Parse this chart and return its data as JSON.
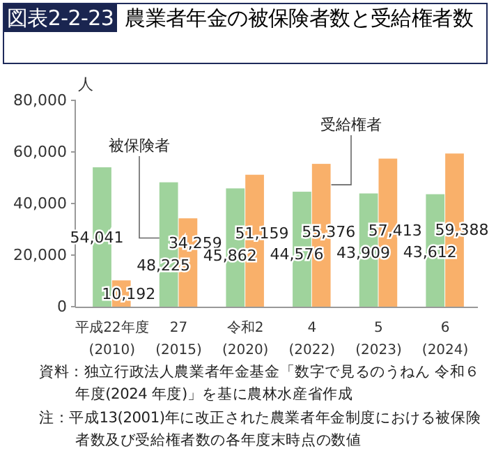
{
  "chart_data": {
    "type": "bar",
    "title": "図表2-2-23 農業者年金の被保険者数と受給権者数",
    "ylabel": "人",
    "categories": [
      "平成22年度\n(2010)",
      "27\n(2015)",
      "令和2\n(2020)",
      "4\n(2022)",
      "5\n(2023)",
      "6\n(2024)"
    ],
    "series": [
      {
        "name": "被保険者",
        "color": "#9fd39c",
        "values": [
          54041,
          48225,
          45862,
          44576,
          43909,
          43612
        ]
      },
      {
        "name": "受給権者",
        "color": "#f9b06a",
        "values": [
          10192,
          34259,
          51159,
          55376,
          57413,
          59388
        ]
      }
    ],
    "ylim": [
      0,
      80000
    ],
    "yticks": [
      0,
      {
        "value": 20000,
        "label": "20,000"
      },
      {
        "value": 40000,
        "label": "40,000"
      },
      {
        "value": 60000,
        "label": "60,000"
      },
      {
        "value": 80000,
        "label": "80,000"
      }
    ],
    "grid": false,
    "value_labels": [
      [
        "54,041",
        "48,225",
        "45,862",
        "44,576",
        "43,909",
        "43,612"
      ],
      [
        "10,192",
        "34,259",
        "51,159",
        "55,376",
        "57,413",
        "59,388"
      ]
    ],
    "annotations": [
      "資料：独立行政法人農業者年金基金「数字で見るのうねん 令和６年度(2024 年度)」を基に農林水産省作成",
      "注：平成13(2001)年に改正された農業者年金制度における被保険者数及び受給権者数の各年度末時点の数値"
    ]
  }
}
